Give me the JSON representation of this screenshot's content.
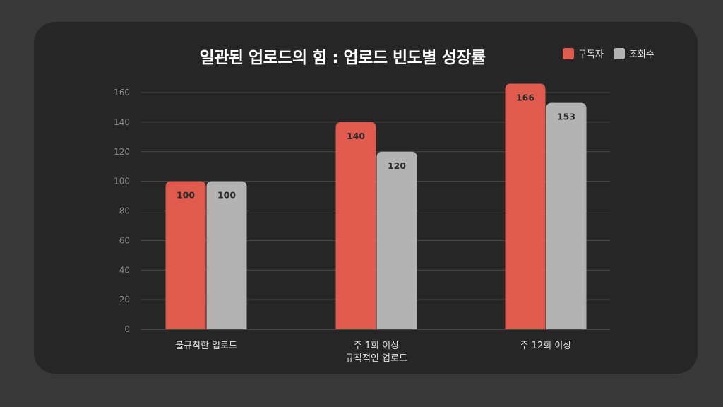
{
  "chart_data": {
    "type": "bar",
    "title": "일관된 업로드의 힘 : 업로드 빈도별 성장률",
    "categories": [
      [
        "불규칙한 업로드"
      ],
      [
        "주 1회 이상",
        "규칙적인 업로드"
      ],
      [
        "주 12회 이상"
      ]
    ],
    "series": [
      {
        "name": "구독자",
        "values": [
          100,
          140,
          166
        ],
        "color": "#e05a4e"
      },
      {
        "name": "조회수",
        "values": [
          100,
          120,
          153
        ],
        "color": "#b3b3b3"
      }
    ],
    "ylim": [
      0,
      160
    ],
    "yticks": [
      0,
      20,
      40,
      60,
      80,
      100,
      120,
      140,
      160
    ],
    "grid": true,
    "legend_position": "top-right",
    "xlabel": "",
    "ylabel": ""
  }
}
